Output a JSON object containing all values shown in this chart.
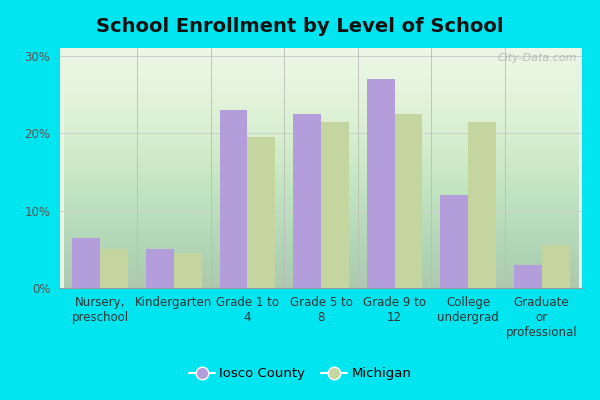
{
  "title": "School Enrollment by Level of School",
  "categories": [
    "Nursery,\npreschool",
    "Kindergarten",
    "Grade 1 to\n4",
    "Grade 5 to\n8",
    "Grade 9 to\n12",
    "College\nundergrad",
    "Graduate\nor\nprofessional"
  ],
  "iosco_values": [
    6.5,
    5.0,
    23.0,
    22.5,
    27.0,
    12.0,
    3.0
  ],
  "michigan_values": [
    5.0,
    4.5,
    19.5,
    21.5,
    22.5,
    21.5,
    5.5
  ],
  "iosco_color": "#b39ddb",
  "michigan_color": "#c5d5a0",
  "background_outer": "#00e5f0",
  "background_inner_top": "#d4e8c8",
  "background_inner_bottom": "#e8f5e0",
  "ylabel": "",
  "ylim": [
    0,
    31
  ],
  "yticks": [
    0,
    10,
    20,
    30
  ],
  "ytick_labels": [
    "0%",
    "10%",
    "20%",
    "30%"
  ],
  "legend_iosco": "Iosco County",
  "legend_michigan": "Michigan",
  "title_fontsize": 14,
  "tick_fontsize": 8.5,
  "legend_fontsize": 9.5,
  "watermark": "City-Data.com"
}
